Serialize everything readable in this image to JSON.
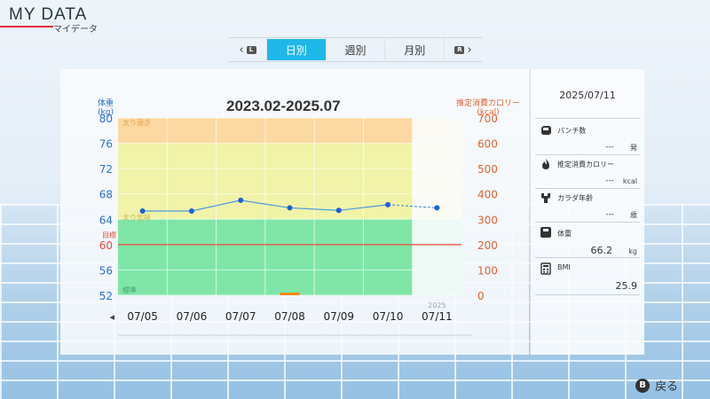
{
  "header": {
    "title": "MY DATA",
    "subtitle": "マイデータ"
  },
  "tabs": {
    "prev_glyph": "L",
    "next_glyph": "R",
    "items": [
      {
        "label": "日別",
        "active": true
      },
      {
        "label": "週別"
      },
      {
        "label": "月別"
      }
    ]
  },
  "chart": {
    "title": "2023.02-2025.07",
    "left_axis_title": "体重",
    "left_axis_unit": "(kg)",
    "right_axis_title": "推定消費カロリー",
    "right_axis_unit": "(kcal)",
    "zone_labels": {
      "over": "太り過ぎ",
      "slightly_over": "太り気味",
      "target": "目標",
      "standard": "標準"
    },
    "year_label": "2025",
    "left_scroll_glyph": "◂"
  },
  "chart_data": {
    "type": "line",
    "categories": [
      "07/05",
      "07/06",
      "07/07",
      "07/08",
      "07/09",
      "07/10",
      "07/11"
    ],
    "series": [
      {
        "axis": "left",
        "values": [
          65.3,
          65.3,
          67.0,
          65.8,
          65.4,
          66.3,
          65.8
        ],
        "forecast_from_index": 5,
        "color": "#1f5fd8"
      }
    ],
    "calorie_bars": [
      {
        "category": "07/08",
        "value": 5,
        "color": "#f08a00"
      }
    ],
    "left_ylim": [
      52,
      80
    ],
    "left_ticks": [
      52,
      56,
      60,
      64,
      68,
      72,
      76,
      80
    ],
    "right_ylim": [
      0,
      700
    ],
    "right_ticks": [
      0,
      100,
      200,
      300,
      400,
      500,
      600,
      700
    ],
    "target_weight": 60,
    "zones": [
      {
        "name": "over",
        "from": 76,
        "to": 80,
        "color": "#fcd9a2"
      },
      {
        "name": "slightly_over",
        "from": 64,
        "to": 76,
        "color": "#f0f3a8"
      },
      {
        "name": "standard",
        "from": 52,
        "to": 64,
        "color": "#7fe6a8"
      }
    ],
    "grid": true
  },
  "info": {
    "date": "2025/07/11",
    "punch_label": "パンチ数",
    "punch_value": "---",
    "punch_unit": "発",
    "calorie_label": "推定消費カロリー",
    "calorie_value": "---",
    "calorie_unit": "kcal",
    "body_age_label": "カラダ年齢",
    "body_age_value": "---",
    "body_age_unit": "歳",
    "weight_label": "体重",
    "weight_value": "66.2",
    "weight_unit": "kg",
    "bmi_label": "BMI",
    "bmi_value": "25.9"
  },
  "footer": {
    "back_glyph": "B",
    "back_label": "戻る"
  },
  "colors": {
    "accent": "#1fb7e8",
    "target_line": "#e84a3a",
    "left_axis": "#2a6fd6",
    "right_axis": "#e06030"
  }
}
